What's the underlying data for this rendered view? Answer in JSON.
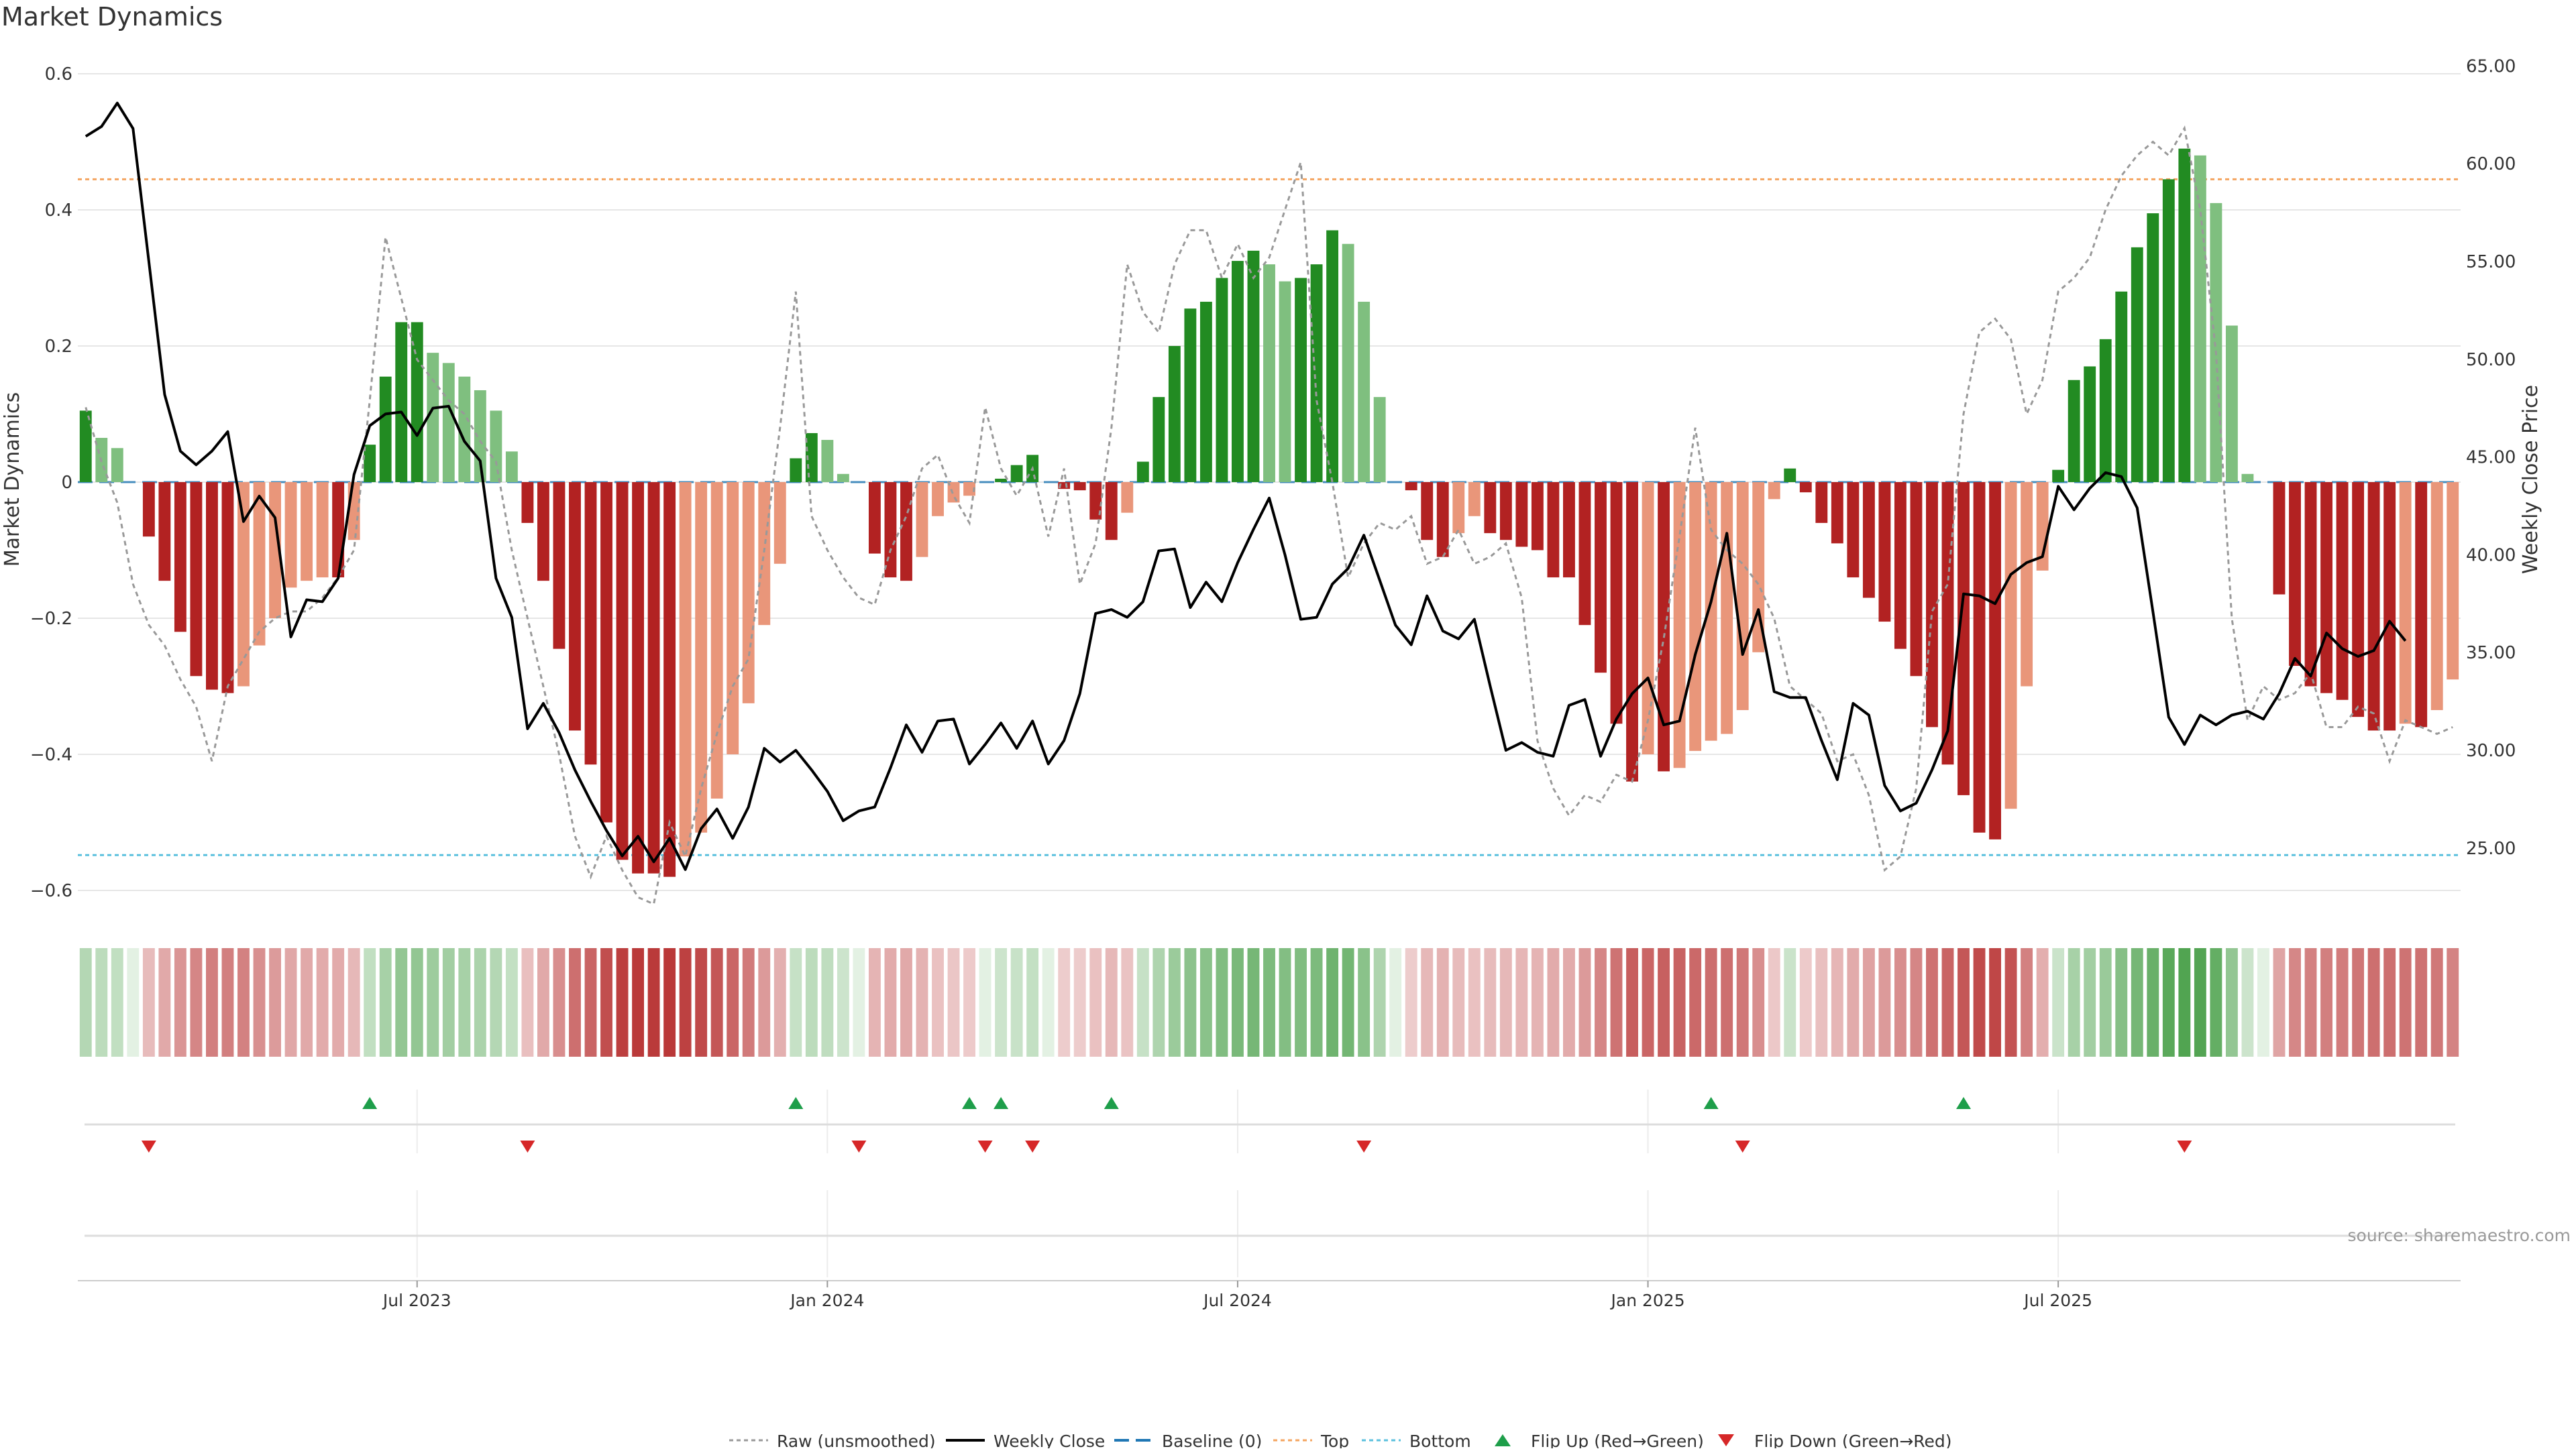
{
  "title": "Market Dynamics",
  "source": "source: sharemaestro.com",
  "colors": {
    "dark_green": "#228B22",
    "light_green": "#7fbf7f",
    "dark_red": "#b22222",
    "light_red": "#e9967a",
    "close_line": "#000000",
    "raw_line": "#999999",
    "baseline": "#1f77b4",
    "top": "#f4a460",
    "bottom": "#5bc0de",
    "flip_up": "#1e9e4a",
    "flip_down": "#d62728"
  },
  "chart_data": {
    "type": "bar",
    "ylabel": "Market Dynamics",
    "y2label": "Weekly Close Price",
    "ylim": [
      -0.62,
      0.62
    ],
    "y2lim": [
      22.8,
      64.6
    ],
    "yticks": [
      0.6,
      0.4,
      0.2,
      0,
      -0.2,
      -0.4,
      -0.6
    ],
    "yticklabels": [
      "0.6",
      "0.4",
      "0.2",
      "0",
      "−0.2",
      "−0.4",
      "−0.6"
    ],
    "y2ticks": [
      65,
      60,
      55,
      50,
      45,
      40,
      35,
      30,
      25
    ],
    "y2ticklabels": [
      "65.00",
      "60.00",
      "55.00",
      "50.00",
      "45.00",
      "40.00",
      "35.00",
      "30.00",
      "25.00"
    ],
    "top_level": 0.445,
    "bottom_level": -0.548,
    "baseline_level": 0,
    "date_ticks": [
      {
        "label": "Jul 2023",
        "week": 21
      },
      {
        "label": "Jan 2024",
        "week": 47
      },
      {
        "label": "Jul 2024",
        "week": 73
      },
      {
        "label": "Jan 2025",
        "week": 99
      },
      {
        "label": "Jul 2025",
        "week": 125
      }
    ],
    "momentum": [
      0.105,
      0.065,
      0.05,
      0,
      -0.08,
      -0.145,
      -0.22,
      -0.285,
      -0.305,
      -0.31,
      -0.3,
      -0.24,
      -0.2,
      -0.155,
      -0.145,
      -0.14,
      -0.14,
      -0.085,
      0.055,
      0.155,
      0.235,
      0.235,
      0.19,
      0.175,
      0.155,
      0.135,
      0.105,
      0.045,
      -0.06,
      -0.145,
      -0.245,
      -0.365,
      -0.415,
      -0.5,
      -0.555,
      -0.575,
      -0.575,
      -0.58,
      -0.55,
      -0.515,
      -0.465,
      -0.4,
      -0.325,
      -0.21,
      -0.12,
      0.035,
      0.072,
      0.062,
      0.012,
      0,
      -0.105,
      -0.14,
      -0.145,
      -0.11,
      -0.05,
      -0.03,
      -0.02,
      0,
      0.005,
      0.025,
      0.04,
      0,
      -0.01,
      -0.012,
      -0.055,
      -0.085,
      -0.045,
      0.03,
      0.125,
      0.2,
      0.255,
      0.265,
      0.3,
      0.325,
      0.34,
      0.32,
      0.295,
      0.3,
      0.32,
      0.37,
      0.35,
      0.265,
      0.125,
      0,
      -0.012,
      -0.085,
      -0.11,
      -0.075,
      -0.05,
      -0.075,
      -0.085,
      -0.095,
      -0.1,
      -0.14,
      -0.14,
      -0.21,
      -0.28,
      -0.355,
      -0.44,
      -0.4,
      -0.425,
      -0.42,
      -0.395,
      -0.38,
      -0.37,
      -0.335,
      -0.25,
      -0.025,
      0.02,
      -0.015,
      -0.06,
      -0.09,
      -0.14,
      -0.17,
      -0.205,
      -0.245,
      -0.285,
      -0.36,
      -0.415,
      -0.46,
      -0.515,
      -0.525,
      -0.48,
      -0.3,
      -0.13,
      0.018,
      0.15,
      0.17,
      0.21,
      0.28,
      0.345,
      0.395,
      0.445,
      0.49,
      0.48,
      0.41,
      0.23,
      0.012,
      0,
      -0.165,
      -0.27,
      -0.3,
      -0.31,
      -0.32,
      -0.345,
      -0.365,
      -0.365,
      -0.355,
      -0.36,
      -0.335,
      -0.29
    ],
    "close": [
      61.4,
      61.9,
      63.1,
      61.8,
      55.0,
      48.2,
      45.3,
      44.6,
      45.3,
      46.3,
      41.7,
      43.0,
      41.9,
      35.8,
      37.7,
      37.6,
      38.8,
      44.1,
      46.6,
      47.2,
      47.3,
      46.1,
      47.5,
      47.6,
      45.8,
      44.8,
      38.8,
      36.8,
      31.1,
      32.4,
      30.9,
      29.0,
      27.4,
      25.9,
      24.6,
      25.6,
      24.3,
      25.5,
      23.9,
      26.0,
      27.0,
      25.5,
      27.1,
      30.1,
      29.4,
      30.0,
      29.0,
      27.9,
      26.4,
      26.9,
      27.1,
      29.1,
      31.3,
      29.9,
      31.5,
      31.6,
      29.3,
      30.3,
      31.4,
      30.1,
      31.5,
      29.3,
      30.5,
      32.9,
      37.0,
      37.2,
      36.8,
      37.6,
      40.2,
      40.3,
      37.3,
      38.6,
      37.6,
      39.6,
      41.3,
      42.9,
      40.0,
      36.7,
      36.8,
      38.5,
      39.3,
      41.0,
      38.7,
      36.4,
      35.4,
      37.9,
      36.1,
      35.7,
      36.7,
      33.3,
      30.0,
      30.4,
      29.9,
      29.7,
      32.3,
      32.6,
      29.7,
      31.6,
      32.9,
      33.7,
      31.3,
      31.5,
      34.9,
      37.6,
      41.1,
      34.9,
      37.2,
      33.0,
      32.7,
      32.7,
      30.5,
      28.5,
      32.4,
      31.8,
      28.2,
      26.9,
      27.3,
      29.0,
      31.0,
      38.0,
      37.9,
      37.5,
      39.0,
      39.6,
      39.9,
      43.5,
      42.3,
      43.4,
      44.2,
      44.0,
      42.4,
      37.1,
      31.7,
      30.3,
      31.8,
      31.3,
      31.8,
      32.0,
      31.6,
      32.9,
      34.7,
      33.8,
      36.0,
      35.2,
      34.8,
      35.1,
      36.6,
      35.6
    ],
    "raw": [
      0.11,
      0.03,
      -0.03,
      -0.15,
      -0.21,
      -0.24,
      -0.29,
      -0.33,
      -0.41,
      -0.3,
      -0.26,
      -0.22,
      -0.2,
      -0.19,
      -0.19,
      -0.17,
      -0.14,
      -0.1,
      0.12,
      0.36,
      0.27,
      0.18,
      0.15,
      0.12,
      0.1,
      0.06,
      0.03,
      -0.1,
      -0.2,
      -0.3,
      -0.4,
      -0.52,
      -0.58,
      -0.52,
      -0.57,
      -0.61,
      -0.62,
      -0.5,
      -0.55,
      -0.45,
      -0.37,
      -0.3,
      -0.26,
      -0.1,
      0.08,
      0.28,
      -0.05,
      -0.1,
      -0.14,
      -0.17,
      -0.18,
      -0.1,
      -0.05,
      0.02,
      0.04,
      -0.02,
      -0.06,
      0.11,
      0.02,
      -0.02,
      0.02,
      -0.08,
      0.02,
      -0.15,
      -0.09,
      0.08,
      0.32,
      0.25,
      0.22,
      0.32,
      0.37,
      0.37,
      0.3,
      0.35,
      0.3,
      0.33,
      0.4,
      0.47,
      0.12,
      0.0,
      -0.14,
      -0.09,
      -0.06,
      -0.07,
      -0.05,
      -0.12,
      -0.11,
      -0.07,
      -0.12,
      -0.11,
      -0.09,
      -0.17,
      -0.38,
      -0.45,
      -0.49,
      -0.46,
      -0.47,
      -0.43,
      -0.44,
      -0.35,
      -0.23,
      -0.08,
      0.08,
      -0.07,
      -0.1,
      -0.12,
      -0.15,
      -0.2,
      -0.3,
      -0.32,
      -0.34,
      -0.41,
      -0.4,
      -0.46,
      -0.57,
      -0.55,
      -0.45,
      -0.19,
      -0.15,
      0.1,
      0.22,
      0.24,
      0.21,
      0.1,
      0.15,
      0.28,
      0.3,
      0.33,
      0.4,
      0.45,
      0.48,
      0.5,
      0.48,
      0.52,
      0.4,
      0.19,
      -0.2,
      -0.35,
      -0.3,
      -0.32,
      -0.31,
      -0.28,
      -0.36,
      -0.36,
      -0.33,
      -0.34,
      -0.41,
      -0.35,
      -0.36,
      -0.37,
      -0.36
    ],
    "flip_up_weeks": [
      18,
      45,
      56,
      58,
      65,
      103,
      119
    ],
    "flip_down_weeks": [
      4,
      28,
      49,
      57,
      60,
      81,
      105,
      133
    ],
    "legend": [
      "Raw (unsmoothed)",
      "Weekly Close",
      "Baseline (0)",
      "Top",
      "Bottom",
      "Flip Up (Red→Green)",
      "Flip Down (Green→Red)"
    ]
  }
}
